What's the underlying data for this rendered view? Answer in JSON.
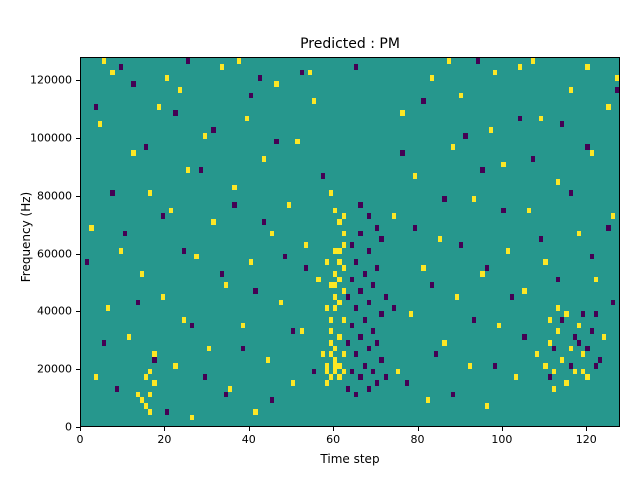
{
  "title": "Predicted : PM",
  "axes": {
    "xlabel": "Time step",
    "ylabel": "Frequency (Hz)",
    "x_ticks": [
      0,
      20,
      40,
      60,
      80,
      100,
      120
    ],
    "y_ticks": [
      0,
      20000,
      40000,
      60000,
      80000,
      100000,
      120000
    ],
    "x_range": [
      0,
      128
    ],
    "y_range": [
      0,
      128000
    ]
  },
  "colors": {
    "background_teal": "#26978d",
    "class_yellow": "#fde725",
    "class_dark_purple": "#440154",
    "axis": "#000000",
    "figure_background": "#ffffff"
  },
  "chart_data": {
    "type": "heatmap",
    "title": "Predicted : PM",
    "xlabel": "Time step",
    "ylabel": "Frequency (Hz)",
    "x_range": [
      0,
      128
    ],
    "y_range_hz": [
      0,
      128000
    ],
    "cell_size": {
      "x": 1,
      "y_hz": 2000
    },
    "legend": "none",
    "classes": {
      "0": "teal-background",
      "1": "yellow",
      "2": "dark-purple"
    },
    "note": "cells are [time_step_bin, frequency_bin(2000Hz each), class]",
    "cells": [
      [
        2,
        34,
        1
      ],
      [
        3,
        8,
        1
      ],
      [
        4,
        52,
        1
      ],
      [
        6,
        20,
        1
      ],
      [
        7,
        61,
        1
      ],
      [
        9,
        30,
        1
      ],
      [
        11,
        15,
        1
      ],
      [
        12,
        47,
        1
      ],
      [
        13,
        5,
        1
      ],
      [
        14,
        26,
        1
      ],
      [
        15,
        3,
        1
      ],
      [
        16,
        9,
        1
      ],
      [
        16,
        5,
        1
      ],
      [
        16,
        2,
        1
      ],
      [
        17,
        7,
        1
      ],
      [
        17,
        12,
        1
      ],
      [
        15,
        8,
        1
      ],
      [
        14,
        4,
        1
      ],
      [
        16,
        40,
        1
      ],
      [
        18,
        55,
        1
      ],
      [
        19,
        22,
        1
      ],
      [
        21,
        37,
        1
      ],
      [
        22,
        10,
        1
      ],
      [
        23,
        58,
        1
      ],
      [
        24,
        18,
        1
      ],
      [
        25,
        44,
        1
      ],
      [
        26,
        1,
        1
      ],
      [
        27,
        29,
        1
      ],
      [
        29,
        50,
        1
      ],
      [
        30,
        13,
        1
      ],
      [
        31,
        35,
        1
      ],
      [
        33,
        62,
        1
      ],
      [
        34,
        24,
        1
      ],
      [
        35,
        6,
        1
      ],
      [
        36,
        41,
        1
      ],
      [
        38,
        17,
        1
      ],
      [
        39,
        53,
        1
      ],
      [
        40,
        28,
        1
      ],
      [
        41,
        2,
        1
      ],
      [
        43,
        46,
        1
      ],
      [
        44,
        11,
        1
      ],
      [
        45,
        33,
        1
      ],
      [
        46,
        59,
        1
      ],
      [
        47,
        21,
        1
      ],
      [
        49,
        38,
        1
      ],
      [
        50,
        7,
        1
      ],
      [
        51,
        49,
        1
      ],
      [
        52,
        16,
        1
      ],
      [
        53,
        31,
        1
      ],
      [
        55,
        56,
        1
      ],
      [
        56,
        25,
        1
      ],
      [
        57,
        12,
        1
      ],
      [
        74,
        36,
        1
      ],
      [
        75,
        9,
        1
      ],
      [
        76,
        54,
        1
      ],
      [
        78,
        19,
        1
      ],
      [
        79,
        43,
        1
      ],
      [
        81,
        27,
        1
      ],
      [
        82,
        4,
        1
      ],
      [
        83,
        60,
        1
      ],
      [
        85,
        32,
        1
      ],
      [
        86,
        14,
        1
      ],
      [
        88,
        48,
        1
      ],
      [
        89,
        22,
        1
      ],
      [
        90,
        57,
        1
      ],
      [
        92,
        10,
        1
      ],
      [
        93,
        39,
        1
      ],
      [
        95,
        26,
        1
      ],
      [
        96,
        3,
        1
      ],
      [
        97,
        51,
        1
      ],
      [
        99,
        17,
        1
      ],
      [
        100,
        45,
        1
      ],
      [
        101,
        30,
        1
      ],
      [
        103,
        8,
        1
      ],
      [
        104,
        62,
        1
      ],
      [
        105,
        23,
        1
      ],
      [
        106,
        37,
        1
      ],
      [
        108,
        12,
        1
      ],
      [
        109,
        53,
        1
      ],
      [
        110,
        28,
        1
      ],
      [
        112,
        6,
        1
      ],
      [
        113,
        42,
        1
      ],
      [
        115,
        19,
        1
      ],
      [
        116,
        58,
        1
      ],
      [
        118,
        33,
        1
      ],
      [
        119,
        9,
        1
      ],
      [
        121,
        47,
        1
      ],
      [
        122,
        25,
        1
      ],
      [
        124,
        15,
        1
      ],
      [
        125,
        55,
        1
      ],
      [
        126,
        36,
        1
      ],
      [
        127,
        60,
        1
      ],
      [
        5,
        63,
        1
      ],
      [
        20,
        60,
        1
      ],
      [
        37,
        63,
        1
      ],
      [
        54,
        61,
        1
      ],
      [
        87,
        63,
        1
      ],
      [
        98,
        61,
        1
      ],
      [
        107,
        63,
        1
      ],
      [
        120,
        62,
        1
      ],
      [
        1,
        28,
        2
      ],
      [
        3,
        55,
        2
      ],
      [
        5,
        14,
        2
      ],
      [
        7,
        40,
        2
      ],
      [
        8,
        6,
        2
      ],
      [
        10,
        33,
        2
      ],
      [
        12,
        59,
        2
      ],
      [
        13,
        21,
        2
      ],
      [
        15,
        48,
        2
      ],
      [
        17,
        11,
        2
      ],
      [
        19,
        36,
        2
      ],
      [
        20,
        2,
        2
      ],
      [
        22,
        54,
        2
      ],
      [
        24,
        30,
        2
      ],
      [
        26,
        17,
        2
      ],
      [
        28,
        44,
        2
      ],
      [
        29,
        8,
        2
      ],
      [
        31,
        51,
        2
      ],
      [
        33,
        26,
        2
      ],
      [
        34,
        5,
        2
      ],
      [
        36,
        38,
        2
      ],
      [
        38,
        13,
        2
      ],
      [
        40,
        57,
        2
      ],
      [
        41,
        23,
        2
      ],
      [
        43,
        35,
        2
      ],
      [
        45,
        4,
        2
      ],
      [
        46,
        49,
        2
      ],
      [
        48,
        29,
        2
      ],
      [
        50,
        16,
        2
      ],
      [
        52,
        61,
        2
      ],
      [
        53,
        27,
        2
      ],
      [
        55,
        9,
        2
      ],
      [
        57,
        43,
        2
      ],
      [
        74,
        20,
        2
      ],
      [
        76,
        47,
        2
      ],
      [
        77,
        7,
        2
      ],
      [
        79,
        34,
        2
      ],
      [
        81,
        56,
        2
      ],
      [
        83,
        24,
        2
      ],
      [
        84,
        12,
        2
      ],
      [
        86,
        39,
        2
      ],
      [
        88,
        5,
        2
      ],
      [
        90,
        31,
        2
      ],
      [
        91,
        50,
        2
      ],
      [
        93,
        18,
        2
      ],
      [
        95,
        44,
        2
      ],
      [
        96,
        27,
        2
      ],
      [
        98,
        10,
        2
      ],
      [
        100,
        37,
        2
      ],
      [
        102,
        22,
        2
      ],
      [
        104,
        53,
        2
      ],
      [
        105,
        15,
        2
      ],
      [
        107,
        46,
        2
      ],
      [
        109,
        32,
        2
      ],
      [
        111,
        8,
        2
      ],
      [
        113,
        25,
        2
      ],
      [
        114,
        52,
        2
      ],
      [
        116,
        40,
        2
      ],
      [
        118,
        14,
        2
      ],
      [
        120,
        48,
        2
      ],
      [
        121,
        29,
        2
      ],
      [
        123,
        11,
        2
      ],
      [
        125,
        34,
        2
      ],
      [
        126,
        21,
        2
      ],
      [
        127,
        58,
        2
      ],
      [
        9,
        62,
        2
      ],
      [
        25,
        63,
        2
      ],
      [
        42,
        60,
        2
      ],
      [
        65,
        62,
        2
      ],
      [
        94,
        63,
        2
      ],
      [
        58,
        7,
        1
      ],
      [
        58,
        9,
        1
      ],
      [
        58,
        10,
        1
      ],
      [
        59,
        8,
        1
      ],
      [
        59,
        12,
        1
      ],
      [
        59,
        14,
        1
      ],
      [
        59,
        16,
        1
      ],
      [
        59,
        18,
        1
      ],
      [
        60,
        9,
        1
      ],
      [
        60,
        10,
        1
      ],
      [
        60,
        11,
        1
      ],
      [
        60,
        13,
        1
      ],
      [
        60,
        20,
        1
      ],
      [
        60,
        22,
        1
      ],
      [
        60,
        24,
        1
      ],
      [
        60,
        26,
        1
      ],
      [
        61,
        8,
        1
      ],
      [
        61,
        10,
        1
      ],
      [
        61,
        15,
        1
      ],
      [
        61,
        21,
        1
      ],
      [
        61,
        25,
        1
      ],
      [
        61,
        28,
        1
      ],
      [
        61,
        30,
        1
      ],
      [
        62,
        9,
        1
      ],
      [
        62,
        12,
        1
      ],
      [
        62,
        18,
        1
      ],
      [
        62,
        23,
        1
      ],
      [
        62,
        27,
        1
      ],
      [
        62,
        31,
        1
      ],
      [
        62,
        33,
        1
      ],
      [
        60,
        30,
        1
      ],
      [
        59,
        24,
        1
      ],
      [
        58,
        20,
        1
      ],
      [
        58,
        28,
        1
      ],
      [
        61,
        35,
        1
      ],
      [
        60,
        37,
        1
      ],
      [
        59,
        40,
        1
      ],
      [
        62,
        36,
        1
      ],
      [
        63,
        6,
        2
      ],
      [
        63,
        14,
        2
      ],
      [
        63,
        22,
        2
      ],
      [
        64,
        9,
        2
      ],
      [
        64,
        17,
        2
      ],
      [
        64,
        25,
        2
      ],
      [
        64,
        31,
        2
      ],
      [
        65,
        5,
        2
      ],
      [
        65,
        12,
        2
      ],
      [
        65,
        20,
        2
      ],
      [
        65,
        28,
        2
      ],
      [
        66,
        8,
        2
      ],
      [
        66,
        15,
        2
      ],
      [
        66,
        23,
        2
      ],
      [
        66,
        33,
        2
      ],
      [
        67,
        10,
        2
      ],
      [
        67,
        18,
        2
      ],
      [
        67,
        26,
        2
      ],
      [
        68,
        6,
        2
      ],
      [
        68,
        13,
        2
      ],
      [
        68,
        21,
        2
      ],
      [
        68,
        30,
        2
      ],
      [
        69,
        9,
        2
      ],
      [
        69,
        16,
        2
      ],
      [
        69,
        24,
        2
      ],
      [
        70,
        7,
        2
      ],
      [
        70,
        14,
        2
      ],
      [
        70,
        27,
        2
      ],
      [
        71,
        11,
        2
      ],
      [
        71,
        19,
        2
      ],
      [
        71,
        32,
        2
      ],
      [
        72,
        8,
        2
      ],
      [
        72,
        22,
        2
      ],
      [
        70,
        34,
        2
      ],
      [
        68,
        36,
        2
      ],
      [
        66,
        38,
        2
      ],
      [
        110,
        10,
        1
      ],
      [
        111,
        14,
        1
      ],
      [
        112,
        9,
        1
      ],
      [
        113,
        16,
        1
      ],
      [
        114,
        11,
        1
      ],
      [
        115,
        7,
        1
      ],
      [
        116,
        13,
        1
      ],
      [
        117,
        9,
        1
      ],
      [
        118,
        17,
        1
      ],
      [
        119,
        12,
        1
      ],
      [
        120,
        8,
        1
      ],
      [
        111,
        18,
        1
      ],
      [
        113,
        20,
        1
      ],
      [
        112,
        13,
        2
      ],
      [
        114,
        18,
        2
      ],
      [
        116,
        10,
        2
      ],
      [
        117,
        15,
        2
      ],
      [
        119,
        19,
        2
      ],
      [
        120,
        13,
        2
      ],
      [
        121,
        16,
        2
      ],
      [
        122,
        10,
        2
      ],
      [
        122,
        19,
        2
      ]
    ]
  }
}
